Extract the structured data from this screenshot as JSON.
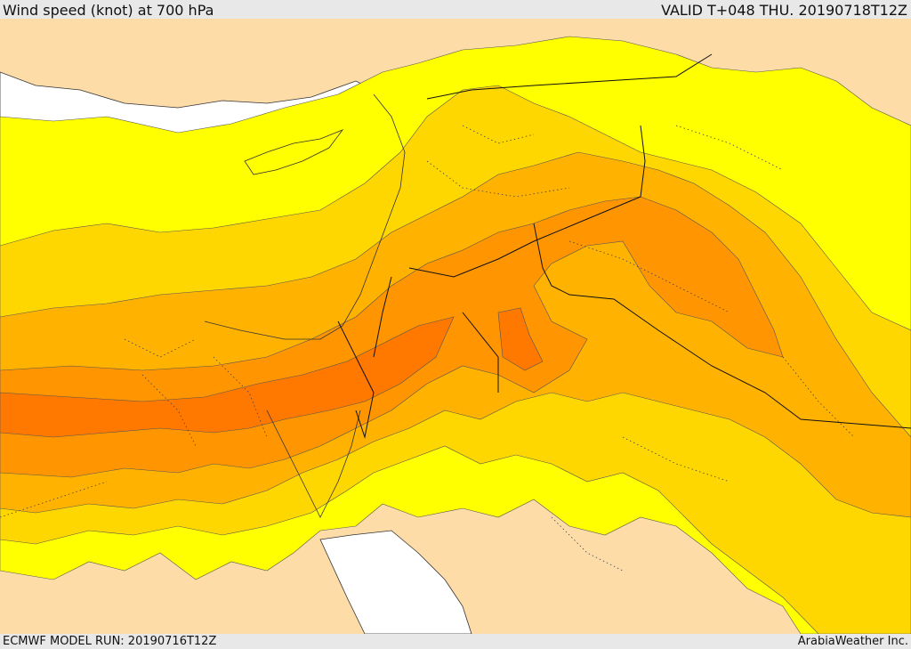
{
  "header": {
    "title": "Wind speed (knot) at 700 hPa",
    "valid": "VALID T+048 THU. 20190718T12Z"
  },
  "footer": {
    "model_run": "ECMWF MODEL RUN: 20190716T12Z",
    "credit": "ArabiaWeather Inc."
  },
  "colors": {
    "sea": "#ffffff",
    "land_calm": "#fddca8",
    "band_1": "#ffff00",
    "band_2": "#ffd700",
    "band_3": "#ffb300",
    "band_4": "#ff9500",
    "band_5": "#ff7800",
    "coastline": "#333333",
    "border": "#111111"
  }
}
